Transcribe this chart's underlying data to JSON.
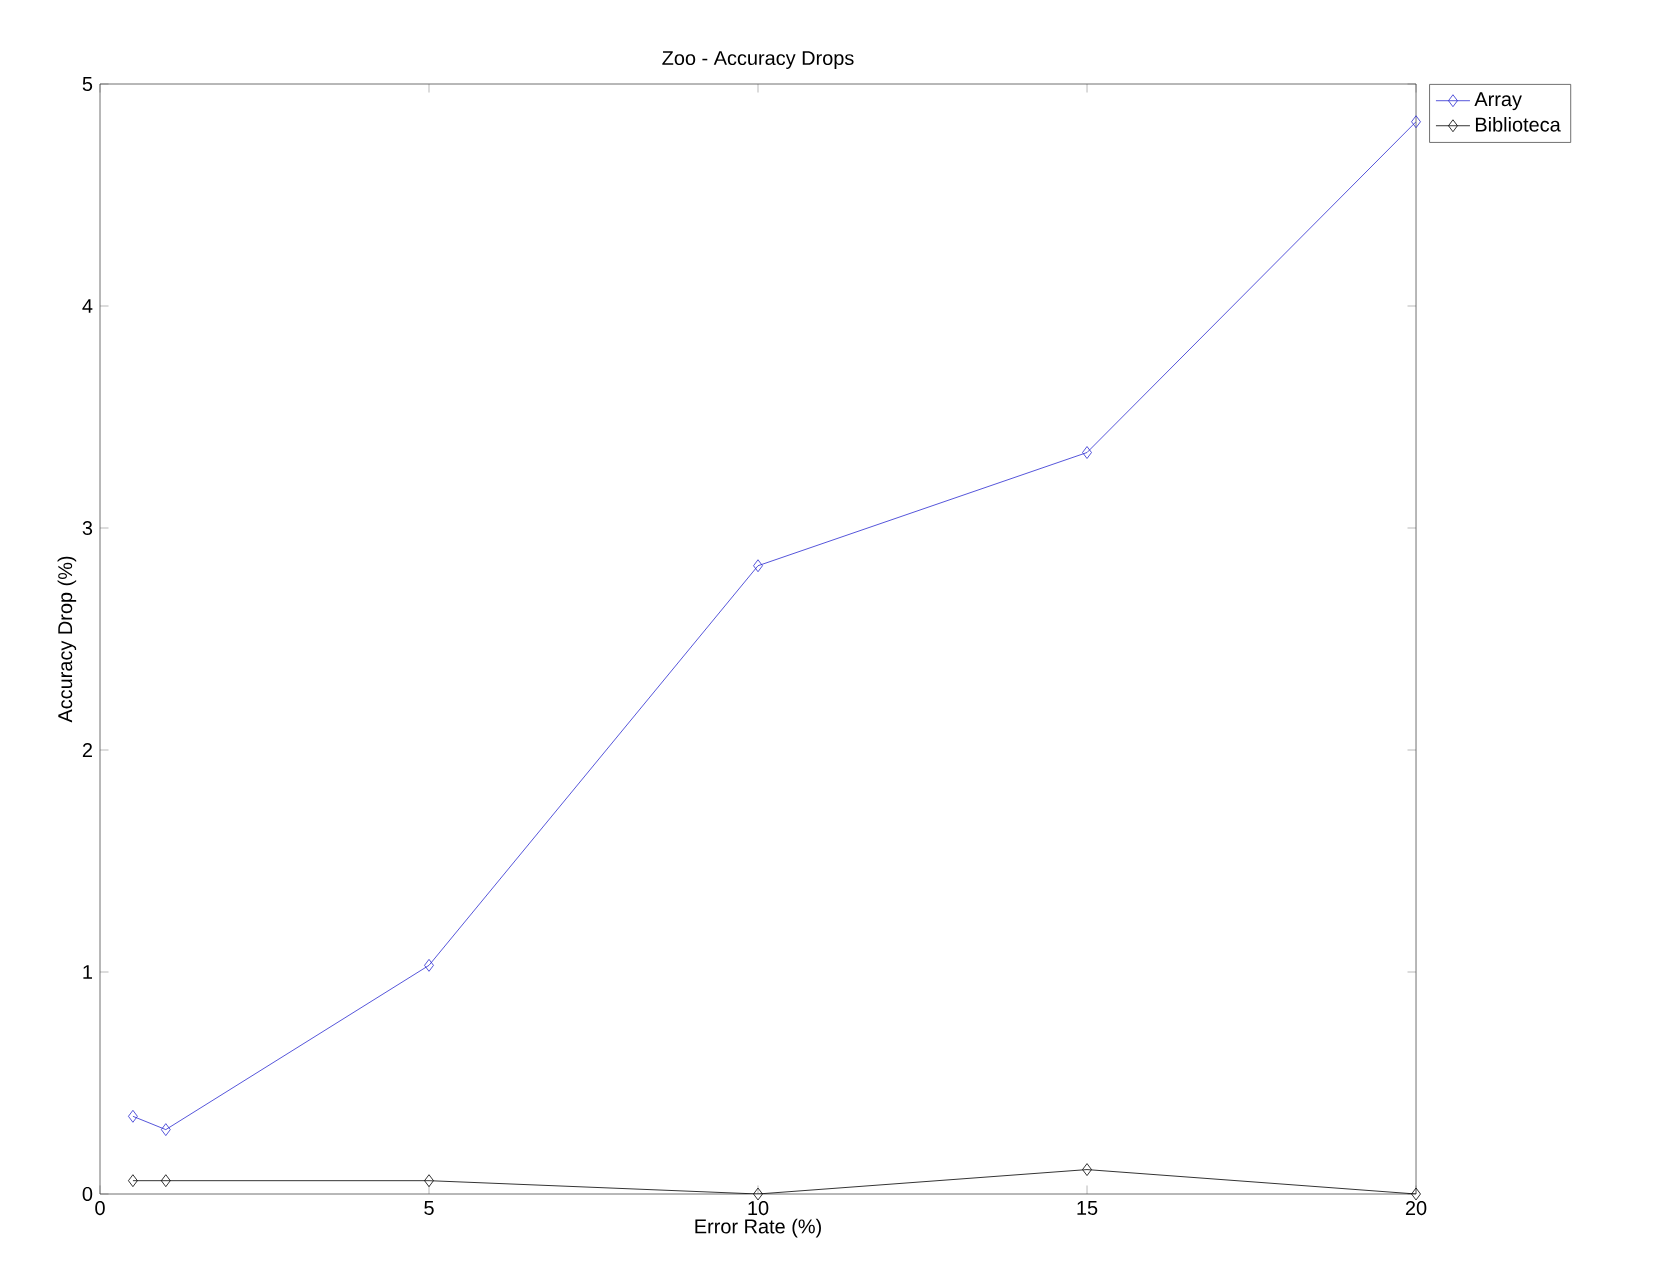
{
  "chart_data": {
    "type": "line",
    "title": "Zoo - Accuracy Drops",
    "xlabel": "Error Rate (%)",
    "ylabel": "Accuracy Drop (%)",
    "x": [
      0.5,
      1,
      5,
      10,
      15,
      20
    ],
    "series": [
      {
        "name": "Array",
        "color": "#2b2bd0",
        "values": [
          0.35,
          0.29,
          1.03,
          2.83,
          3.34,
          4.83
        ]
      },
      {
        "name": "Biblioteca",
        "color": "#000000",
        "values": [
          0.06,
          0.06,
          0.06,
          0,
          0.11,
          0
        ]
      }
    ],
    "xlim": [
      0,
      20
    ],
    "ylim": [
      0,
      5
    ],
    "xticks": [
      0,
      5,
      10,
      15,
      20
    ],
    "yticks": [
      0,
      1,
      2,
      3,
      4,
      5
    ],
    "legend": "top right outside",
    "marker": "diamond",
    "line_style": "solid",
    "grid": false
  }
}
